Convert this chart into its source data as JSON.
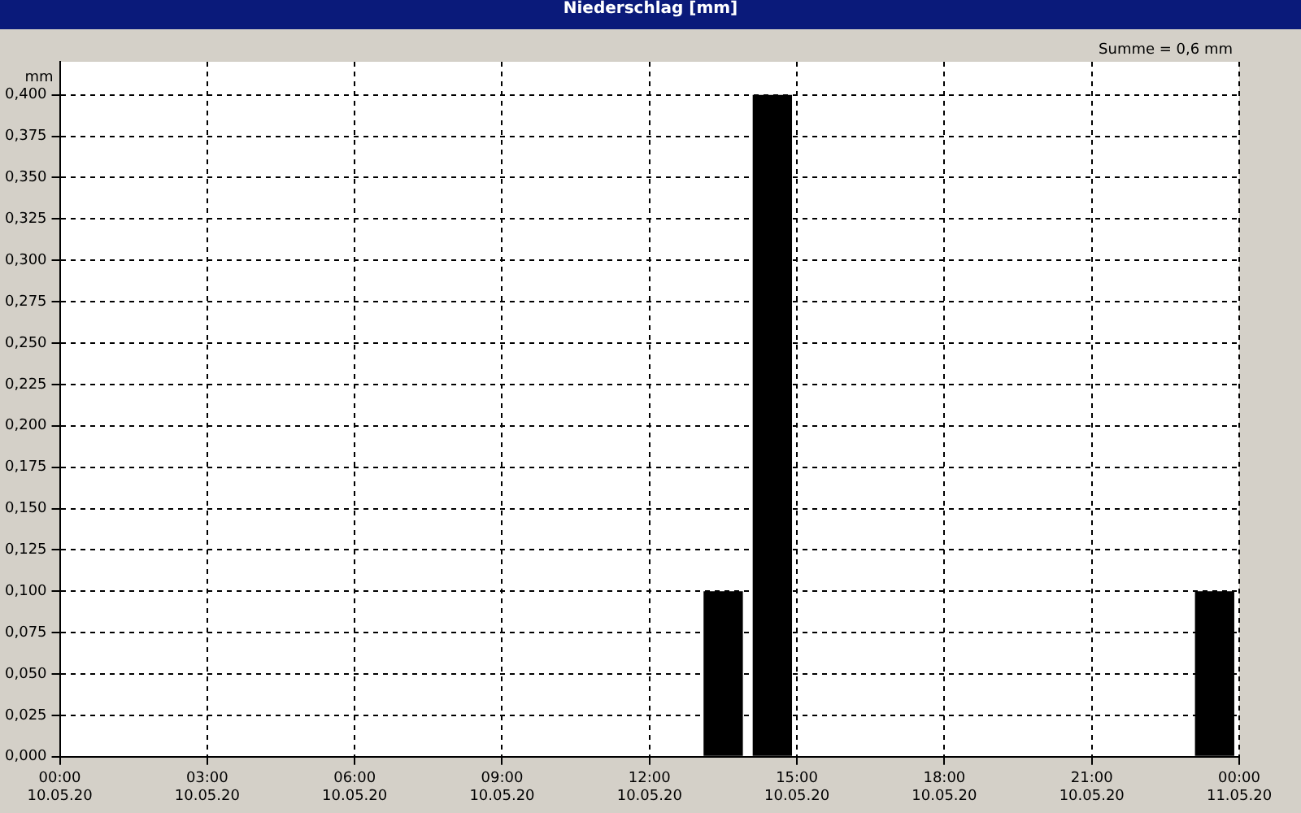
{
  "chart_data": {
    "type": "bar",
    "title": "Niederschlag [mm]",
    "ylabel": "mm",
    "annotations": [
      "Summe = 0,6 mm"
    ],
    "x": [
      "--05-10T00:30",
      "--05-10T01:30",
      "--05-10T02:30",
      "--05-10T03:30",
      "--05-10T04:30",
      "--05-10T05:30",
      "--05-10T06:30",
      "--05-10T07:30",
      "--05-10T08:30",
      "--05-10T09:30",
      "--05-10T10:30",
      "--05-10T11:30",
      "--05-10T12:30",
      "--05-10T13:30",
      "--05-10T14:30",
      "--05-10T15:30",
      "--05-10T16:30",
      "--05-10T17:30",
      "--05-10T18:30",
      "--05-10T19:30",
      "--05-10T20:30",
      "--05-10T21:30",
      "--05-10T22:30",
      "--05-10T23:30"
    ],
    "values": [
      0,
      0,
      0,
      0,
      0,
      0,
      0,
      0,
      0,
      0,
      0,
      0,
      0,
      0.1,
      0.4,
      0,
      0,
      0,
      0,
      0,
      0,
      0,
      0,
      0.1
    ],
    "color": "#000000",
    "xlim": [
      "--05-10T00:00",
      "--05-11T00:00"
    ],
    "xticks": [
      {
        "value": "--05-10T00:00",
        "label": "00:00\n10.05.20"
      },
      {
        "value": "--05-10T03:00",
        "label": "03:00\n10.05.20"
      },
      {
        "value": "--05-10T06:00",
        "label": "06:00\n10.05.20"
      },
      {
        "value": "--05-10T09:00",
        "label": "09:00\n10.05.20"
      },
      {
        "value": "--05-10T12:00",
        "label": "12:00\n10.05.20"
      },
      {
        "value": "--05-10T15:00",
        "label": "15:00\n10.05.20"
      },
      {
        "value": "--05-10T18:00",
        "label": "18:00\n10.05.20"
      },
      {
        "value": "--05-10T21:00",
        "label": "21:00\n10.05.20"
      },
      {
        "value": "--05-11T00:00",
        "label": "00:00\n11.05.20"
      }
    ],
    "ylim": [
      0,
      0.42
    ],
    "yticks": [
      {
        "value": 0,
        "label": "0,000"
      },
      {
        "value": 0.025,
        "label": "0,025"
      },
      {
        "value": 0.05,
        "label": "0,050"
      },
      {
        "value": 0.075,
        "label": "0,075"
      },
      {
        "value": 0.1,
        "label": "0,100"
      },
      {
        "value": 0.125,
        "label": "0,125"
      },
      {
        "value": 0.15,
        "label": "0,150"
      },
      {
        "value": 0.175,
        "label": "0,175"
      },
      {
        "value": 0.2,
        "label": "0,200"
      },
      {
        "value": 0.225,
        "label": "0,225"
      },
      {
        "value": 0.25,
        "label": "0,250"
      },
      {
        "value": 0.275,
        "label": "0,275"
      },
      {
        "value": 0.3,
        "label": "0,300"
      },
      {
        "value": 0.325,
        "label": "0,325"
      },
      {
        "value": 0.35,
        "label": "0,350"
      },
      {
        "value": 0.375,
        "label": "0,375"
      },
      {
        "value": 0.4,
        "label": "0,400"
      }
    ],
    "grid": true,
    "legend": false,
    "line_style": "dashed"
  }
}
